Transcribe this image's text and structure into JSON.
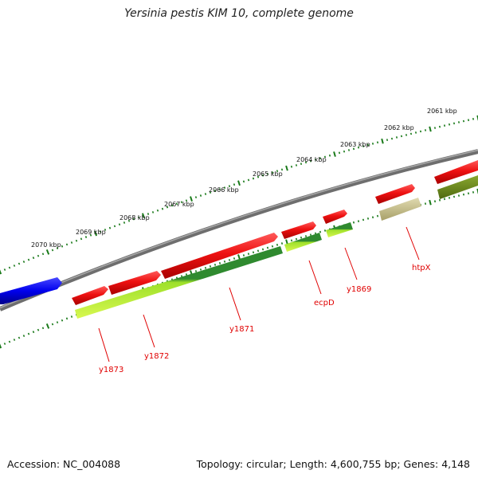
{
  "title": "Yersinia pestis KIM 10, complete genome",
  "accession_label": "Accession: NC_004088",
  "stats_label": "Topology: circular; Length: 4,600,755 bp; Genes: 4,148",
  "colors": {
    "backbone": "#808080",
    "tick": "#1a7a1a",
    "forward_gene": "#ee1111",
    "reverse_gene": "#0000ee",
    "rna_dark": "#2f8a2f",
    "rna_light": "#c8f040",
    "olive": "#6b8a1f",
    "tan": "#c8c08a",
    "label": "#e00000"
  },
  "tick_labels": [
    "2061 kbp",
    "2062 kbp",
    "2063 kbp",
    "2064 kbp",
    "2065 kbp",
    "2066 kbp",
    "2067 kbp",
    "2068 kbp",
    "2069 kbp",
    "2070 kbp"
  ],
  "gene_labels": [
    "htpX",
    "y1869",
    "ecpD",
    "y1871",
    "y1872",
    "y1873"
  ]
}
